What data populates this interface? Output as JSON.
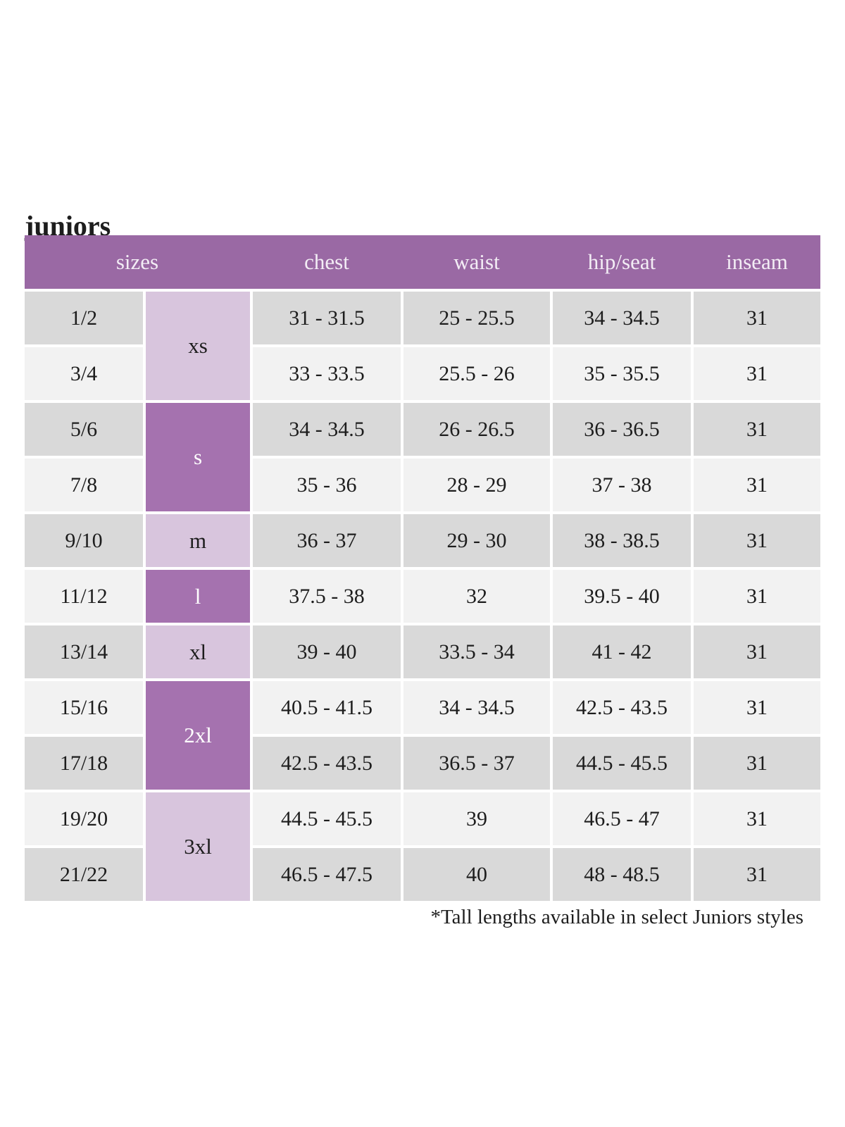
{
  "page": {
    "title": "juniors",
    "footnote": "*Tall lengths available in select Juniors styles"
  },
  "colors": {
    "page_bg": "#ffffff",
    "header_bg": "#9a69a4",
    "header_text": "#f3edf5",
    "group_dark_bg": "#a572af",
    "group_dark_text": "#ffffff",
    "group_light_bg": "#d8c5dd",
    "row_odd_bg": "#d9d9d9",
    "row_even_bg": "#f2f2f2",
    "text": "#1d1d1d"
  },
  "table": {
    "headers": {
      "sizes": "sizes",
      "chest": "chest",
      "waist": "waist",
      "hip_seat": "hip/seat",
      "inseam": "inseam"
    },
    "size_groups": [
      {
        "label": "xs",
        "rows": 2,
        "shade": "light"
      },
      {
        "label": "s",
        "rows": 2,
        "shade": "dark"
      },
      {
        "label": "m",
        "rows": 1,
        "shade": "light"
      },
      {
        "label": "l",
        "rows": 1,
        "shade": "dark"
      },
      {
        "label": "xl",
        "rows": 1,
        "shade": "light"
      },
      {
        "label": "2xl",
        "rows": 2,
        "shade": "dark"
      },
      {
        "label": "3xl",
        "rows": 2,
        "shade": "light"
      }
    ],
    "rows": [
      {
        "size": "1/2",
        "chest": "31 - 31.5",
        "waist": "25 - 25.5",
        "hip_seat": "34 - 34.5",
        "inseam": "31"
      },
      {
        "size": "3/4",
        "chest": "33 - 33.5",
        "waist": "25.5 - 26",
        "hip_seat": "35 - 35.5",
        "inseam": "31"
      },
      {
        "size": "5/6",
        "chest": "34 - 34.5",
        "waist": "26 - 26.5",
        "hip_seat": "36 - 36.5",
        "inseam": "31"
      },
      {
        "size": "7/8",
        "chest": "35 - 36",
        "waist": "28 - 29",
        "hip_seat": "37 - 38",
        "inseam": "31"
      },
      {
        "size": "9/10",
        "chest": "36 - 37",
        "waist": "29 - 30",
        "hip_seat": "38 - 38.5",
        "inseam": "31"
      },
      {
        "size": "11/12",
        "chest": "37.5 - 38",
        "waist": "32",
        "hip_seat": "39.5 - 40",
        "inseam": "31"
      },
      {
        "size": "13/14",
        "chest": "39 - 40",
        "waist": "33.5 - 34",
        "hip_seat": "41 - 42",
        "inseam": "31"
      },
      {
        "size": "15/16",
        "chest": "40.5 - 41.5",
        "waist": "34 - 34.5",
        "hip_seat": "42.5 - 43.5",
        "inseam": "31"
      },
      {
        "size": "17/18",
        "chest": "42.5 - 43.5",
        "waist": "36.5 - 37",
        "hip_seat": "44.5 - 45.5",
        "inseam": "31"
      },
      {
        "size": "19/20",
        "chest": "44.5 - 45.5",
        "waist": "39",
        "hip_seat": "46.5 - 47",
        "inseam": "31"
      },
      {
        "size": "21/22",
        "chest": "46.5 - 47.5",
        "waist": "40",
        "hip_seat": "48 - 48.5",
        "inseam": "31"
      }
    ]
  }
}
